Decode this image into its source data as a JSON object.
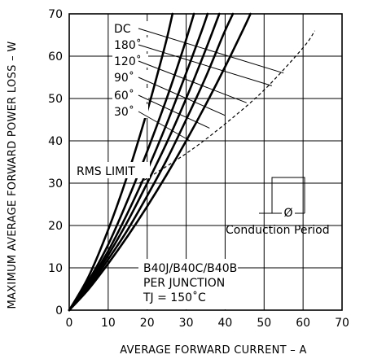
{
  "chart_data": {
    "type": "line",
    "xlabel": "AVERAGE FORWARD CURRENT – A",
    "ylabel": "MAXIMUM AVERAGE FORWARD POWER LOSS – W",
    "xlim": [
      0,
      70
    ],
    "ylim": [
      0,
      70
    ],
    "x_ticks": [
      "0",
      "10",
      "20",
      "30",
      "40",
      "50",
      "60",
      "70"
    ],
    "y_ticks": [
      "0",
      "10",
      "20",
      "30",
      "40",
      "50",
      "60",
      "70"
    ],
    "grid": true,
    "series": [
      {
        "name": "DC",
        "points": [
          [
            0,
            0
          ],
          [
            5,
            5
          ],
          [
            10,
            11
          ],
          [
            15,
            17.5
          ],
          [
            20,
            24.5
          ],
          [
            25,
            32
          ],
          [
            30,
            40
          ],
          [
            35,
            48.5
          ],
          [
            40,
            57.5
          ],
          [
            45,
            67
          ],
          [
            46.5,
            70
          ]
        ]
      },
      {
        "name": "180˚",
        "points": [
          [
            0,
            0
          ],
          [
            5,
            5.5
          ],
          [
            10,
            12
          ],
          [
            15,
            19
          ],
          [
            20,
            27
          ],
          [
            25,
            35.5
          ],
          [
            30,
            45
          ],
          [
            35,
            55
          ],
          [
            39.5,
            65
          ],
          [
            42,
            70
          ]
        ]
      },
      {
        "name": "120˚",
        "points": [
          [
            0,
            0
          ],
          [
            5,
            6
          ],
          [
            10,
            13
          ],
          [
            15,
            21
          ],
          [
            20,
            30
          ],
          [
            25,
            39.5
          ],
          [
            30,
            50
          ],
          [
            35,
            61.5
          ],
          [
            38.5,
            70
          ]
        ]
      },
      {
        "name": "90˚",
        "points": [
          [
            0,
            0
          ],
          [
            5,
            6.5
          ],
          [
            10,
            14
          ],
          [
            15,
            23
          ],
          [
            20,
            33
          ],
          [
            25,
            44
          ],
          [
            30,
            56
          ],
          [
            34,
            66
          ],
          [
            35.5,
            70
          ]
        ]
      },
      {
        "name": "60˚",
        "points": [
          [
            0,
            0
          ],
          [
            5,
            7
          ],
          [
            10,
            15.5
          ],
          [
            15,
            26
          ],
          [
            20,
            37.5
          ],
          [
            25,
            50
          ],
          [
            29,
            61
          ],
          [
            32,
            70
          ]
        ]
      },
      {
        "name": "30˚",
        "points": [
          [
            0,
            0
          ],
          [
            5,
            8
          ],
          [
            10,
            19
          ],
          [
            15,
            32
          ],
          [
            20,
            47
          ],
          [
            23,
            57
          ],
          [
            25,
            64
          ],
          [
            26.5,
            70
          ]
        ]
      }
    ],
    "rms_limit": {
      "name": "RMS LIMIT",
      "points": [
        [
          18,
          30
        ],
        [
          30,
          37
        ],
        [
          40,
          44
        ],
        [
          50,
          52
        ],
        [
          60,
          62
        ],
        [
          63,
          66
        ]
      ]
    },
    "labels": {
      "curve_labels": [
        "DC",
        "180˚",
        "120˚",
        "90˚",
        "60˚",
        "30˚"
      ],
      "rms": "RMS LIMIT",
      "conduction": "Conduction Period",
      "phi": "Ø",
      "device": "B40J/B40C/B40B",
      "per_junction": "PER JUNCTION",
      "tj": "TJ = 150˚C"
    }
  }
}
